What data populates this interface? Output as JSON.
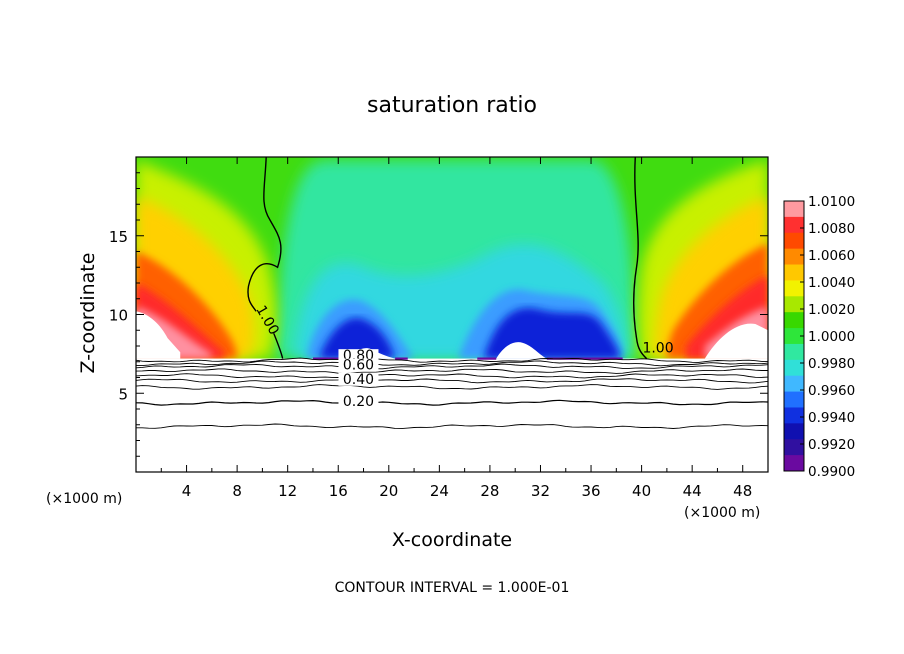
{
  "chart_data": {
    "type": "heatmap",
    "title": "saturation ratio",
    "xlabel": "X-coordinate",
    "ylabel": "Z-coordinate",
    "x_unit_label_left": "(×1000 m)",
    "x_unit_label_right": "(×1000 m)",
    "xlim": [
      0,
      50
    ],
    "ylim": [
      0,
      20
    ],
    "xticks": [
      4,
      8,
      12,
      16,
      20,
      24,
      28,
      32,
      36,
      40,
      44,
      48
    ],
    "yticks": [
      5,
      10,
      15
    ],
    "footer": "CONTOUR INTERVAL = 1.000E-01",
    "colorbar": {
      "labels": [
        "1.0100",
        "1.0080",
        "1.0060",
        "1.0040",
        "1.0020",
        "1.0000",
        "0.9980",
        "0.9960",
        "0.9940",
        "0.9920",
        "0.9900"
      ],
      "colors": [
        "#ff9aa0",
        "#ff3030",
        "#ff4a00",
        "#ff8a00",
        "#ffc800",
        "#f2f200",
        "#a8e800",
        "#38d800",
        "#2ee63a",
        "#30e8a0",
        "#30e0d8",
        "#40b8ff",
        "#2070ff",
        "#1030e0",
        "#1010b0",
        "#3010a0",
        "#6a0aa0"
      ]
    },
    "contour_labels": [
      {
        "text": "1.00",
        "x": 10.1,
        "z": 9.5
      },
      {
        "text": "1.00",
        "x": 41.3,
        "z": 7.6
      },
      {
        "text": "0.80",
        "x": 17.6,
        "z": 7.1
      },
      {
        "text": "0.60",
        "x": 17.6,
        "z": 6.5
      },
      {
        "text": "0.40",
        "x": 17.6,
        "z": 5.6
      },
      {
        "text": "0.20",
        "x": 17.6,
        "z": 4.2
      }
    ],
    "cloud_base_z": 7.2,
    "contour_levels_below": [
      7.1,
      6.9,
      6.7,
      6.4,
      6.1,
      5.8,
      5.4,
      4.4,
      2.9
    ]
  }
}
